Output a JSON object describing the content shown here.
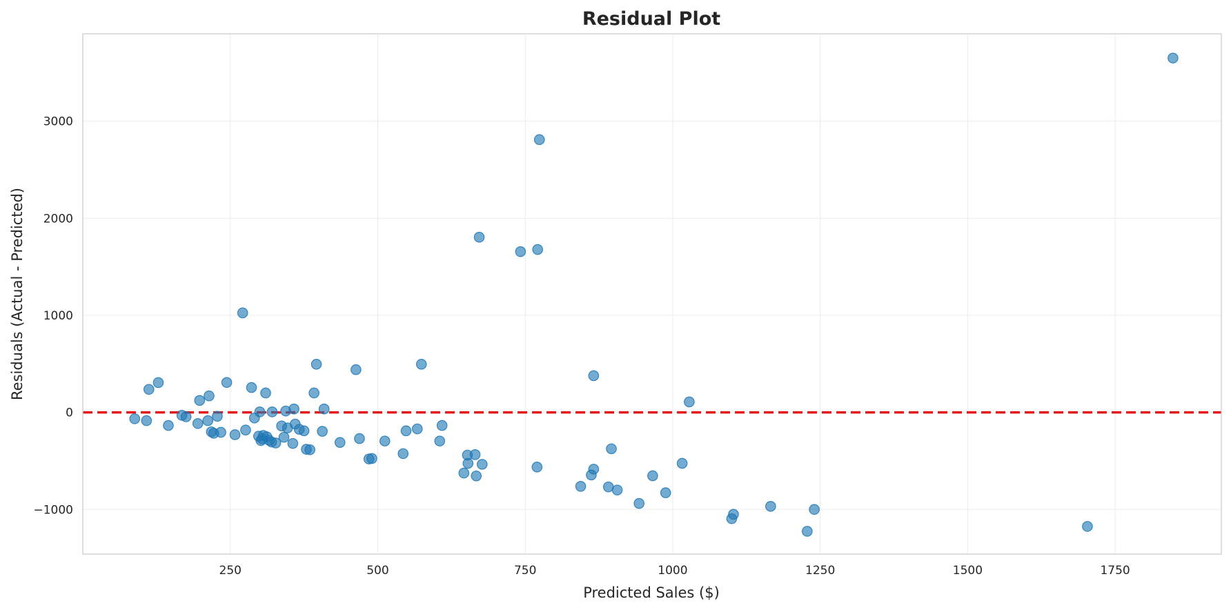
{
  "chart_data": {
    "type": "scatter",
    "title": "Residual Plot",
    "xlabel": "Predicted Sales ($)",
    "ylabel": "Residuals (Actual - Predicted)",
    "xlim": [
      0,
      1930
    ],
    "ylim": [
      -1460,
      3900
    ],
    "xticks": [
      250,
      500,
      750,
      1000,
      1250,
      1500,
      1750
    ],
    "yticks": [
      -1000,
      0,
      1000,
      2000,
      3000
    ],
    "xtick_labels": [
      "250",
      "500",
      "750",
      "1000",
      "1250",
      "1500",
      "1750"
    ],
    "ytick_labels": [
      "−1000",
      "0",
      "1000",
      "2000",
      "3000"
    ],
    "grid": true,
    "reference_line": {
      "y": 0,
      "style": "dashed",
      "color": "#e31a1c"
    },
    "point_color": "#1f77b4",
    "points": [
      [
        88,
        -66
      ],
      [
        108,
        -85
      ],
      [
        112,
        237
      ],
      [
        128,
        307
      ],
      [
        145,
        -135
      ],
      [
        168,
        -30
      ],
      [
        175,
        -45
      ],
      [
        195,
        -115
      ],
      [
        198,
        123
      ],
      [
        212,
        -85
      ],
      [
        214,
        170
      ],
      [
        218,
        -200
      ],
      [
        222,
        -215
      ],
      [
        228,
        -40
      ],
      [
        234,
        -205
      ],
      [
        244,
        308
      ],
      [
        258,
        -230
      ],
      [
        271,
        1025
      ],
      [
        276,
        -182
      ],
      [
        286,
        256
      ],
      [
        291,
        -58
      ],
      [
        298,
        -245
      ],
      [
        300,
        5
      ],
      [
        302,
        -290
      ],
      [
        304,
        -272
      ],
      [
        306,
        -238
      ],
      [
        310,
        200
      ],
      [
        312,
        -252
      ],
      [
        316,
        -288
      ],
      [
        320,
        -305
      ],
      [
        321,
        5
      ],
      [
        327,
        -315
      ],
      [
        337,
        -140
      ],
      [
        341,
        -256
      ],
      [
        344,
        14
      ],
      [
        347,
        -160
      ],
      [
        356,
        -320
      ],
      [
        358,
        35
      ],
      [
        360,
        -120
      ],
      [
        367,
        -175
      ],
      [
        375,
        -190
      ],
      [
        379,
        -380
      ],
      [
        385,
        -385
      ],
      [
        392,
        200
      ],
      [
        396,
        496
      ],
      [
        406,
        -195
      ],
      [
        409,
        35
      ],
      [
        436,
        -310
      ],
      [
        463,
        440
      ],
      [
        469,
        -270
      ],
      [
        485,
        -480
      ],
      [
        490,
        -475
      ],
      [
        512,
        -295
      ],
      [
        543,
        -425
      ],
      [
        548,
        -190
      ],
      [
        567,
        -170
      ],
      [
        574,
        496
      ],
      [
        605,
        -295
      ],
      [
        609,
        -135
      ],
      [
        646,
        -625
      ],
      [
        652,
        -440
      ],
      [
        653,
        -525
      ],
      [
        665,
        -435
      ],
      [
        667,
        -655
      ],
      [
        672,
        1805
      ],
      [
        677,
        -535
      ],
      [
        742,
        1656
      ],
      [
        770,
        -563
      ],
      [
        771,
        1678
      ],
      [
        774,
        2810
      ],
      [
        844,
        -762
      ],
      [
        862,
        -645
      ],
      [
        866,
        378
      ],
      [
        866,
        -585
      ],
      [
        891,
        -768
      ],
      [
        896,
        -375
      ],
      [
        906,
        -800
      ],
      [
        943,
        -938
      ],
      [
        966,
        -653
      ],
      [
        988,
        -828
      ],
      [
        1016,
        -525
      ],
      [
        1028,
        108
      ],
      [
        1100,
        -1095
      ],
      [
        1103,
        -1050
      ],
      [
        1166,
        -968
      ],
      [
        1228,
        -1225
      ],
      [
        1240,
        -1000
      ],
      [
        1703,
        -1175
      ],
      [
        1848,
        3650
      ]
    ]
  }
}
